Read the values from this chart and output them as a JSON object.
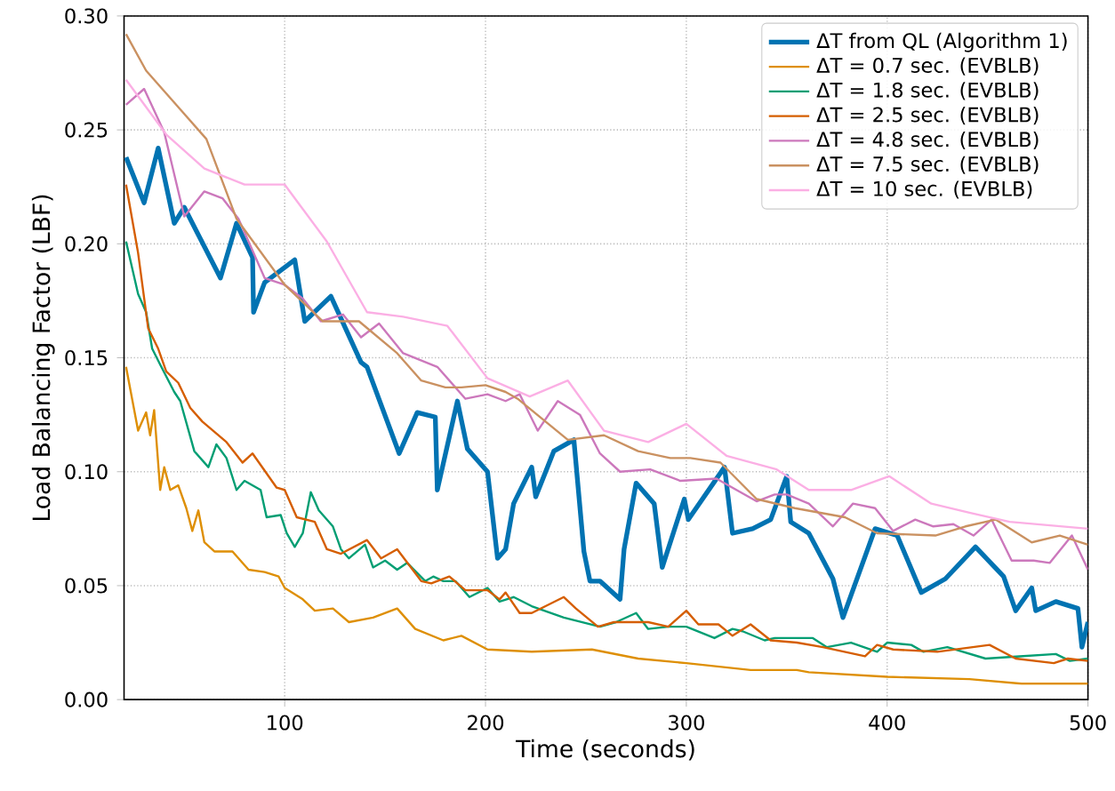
{
  "chart_data": {
    "type": "line",
    "xlabel": "Time (seconds)",
    "ylabel": "Load Balancing Factor (LBF)",
    "xlim": [
      20,
      500
    ],
    "ylim": [
      0,
      0.3
    ],
    "xticks": [
      100,
      200,
      300,
      400,
      500
    ],
    "yticks": [
      {
        "value": 0,
        "label": "0.00"
      },
      {
        "value": 0.05,
        "label": "0.05"
      },
      {
        "value": 0.1,
        "label": "0.10"
      },
      {
        "value": 0.15,
        "label": "0.15"
      },
      {
        "value": 0.2,
        "label": "0.20"
      },
      {
        "value": 0.25,
        "label": "0.25"
      },
      {
        "value": 0.3,
        "label": "0.30"
      }
    ],
    "grid": true,
    "legend": "top right",
    "line_style": "solid",
    "marker": "none",
    "series": [
      {
        "name": "ΔT from QL (Algorithm 1)",
        "color": "#0173b2",
        "x": [
          21,
          30,
          37,
          45,
          50,
          68,
          76,
          84,
          84.5,
          90,
          105,
          110,
          123,
          138,
          141,
          157,
          166,
          175,
          176,
          186,
          191,
          201,
          206,
          210,
          214,
          223,
          225,
          234,
          244,
          249,
          252,
          257,
          267,
          269,
          275,
          284,
          288,
          299,
          301,
          319,
          323,
          333,
          342,
          350,
          352,
          361,
          373,
          378,
          394,
          405,
          417,
          429,
          444,
          458,
          464,
          472,
          474,
          484,
          495,
          497,
          500
        ],
        "values": [
          0.238,
          0.218,
          0.242,
          0.209,
          0.216,
          0.185,
          0.209,
          0.194,
          0.17,
          0.183,
          0.193,
          0.166,
          0.177,
          0.148,
          0.146,
          0.108,
          0.126,
          0.124,
          0.092,
          0.131,
          0.11,
          0.1,
          0.062,
          0.066,
          0.086,
          0.102,
          0.089,
          0.109,
          0.114,
          0.065,
          0.052,
          0.052,
          0.044,
          0.066,
          0.095,
          0.086,
          0.058,
          0.088,
          0.079,
          0.102,
          0.073,
          0.075,
          0.079,
          0.098,
          0.078,
          0.073,
          0.053,
          0.036,
          0.075,
          0.072,
          0.047,
          0.053,
          0.067,
          0.054,
          0.039,
          0.049,
          0.039,
          0.043,
          0.04,
          0.023,
          0.034
        ]
      },
      {
        "name": "ΔT = 0.7 sec. (EVBLB)",
        "color": "#de8f05",
        "x": [
          21,
          27,
          31,
          33,
          35,
          38,
          40,
          43,
          47,
          51,
          54,
          57,
          60,
          65,
          74,
          82,
          90,
          97,
          100,
          109,
          115,
          124,
          132,
          144,
          156,
          165,
          179,
          188,
          201,
          223,
          253,
          276,
          300,
          332,
          355,
          361,
          400,
          441,
          467,
          500
        ],
        "values": [
          0.146,
          0.118,
          0.126,
          0.116,
          0.127,
          0.092,
          0.102,
          0.092,
          0.094,
          0.084,
          0.074,
          0.083,
          0.069,
          0.065,
          0.065,
          0.057,
          0.056,
          0.054,
          0.049,
          0.044,
          0.039,
          0.04,
          0.034,
          0.036,
          0.04,
          0.031,
          0.026,
          0.028,
          0.022,
          0.021,
          0.022,
          0.018,
          0.016,
          0.013,
          0.013,
          0.012,
          0.01,
          0.009,
          0.007,
          0.007
        ]
      },
      {
        "name": "ΔT = 1.8 sec. (EVBLB)",
        "color": "#029e73",
        "x": [
          21,
          27,
          31,
          34,
          38,
          45,
          48,
          55,
          62,
          66,
          71,
          76,
          80,
          88,
          91,
          98,
          101,
          105,
          109,
          113,
          117,
          124,
          128,
          132,
          140,
          144,
          150,
          156,
          161,
          170,
          174,
          179,
          185,
          192,
          201,
          207,
          214,
          223,
          239,
          257,
          265,
          275,
          281,
          291,
          300,
          314,
          323,
          328,
          339,
          344,
          363,
          370,
          382,
          395,
          400,
          412,
          418,
          430,
          449,
          466,
          484,
          491,
          500
        ],
        "values": [
          0.201,
          0.178,
          0.17,
          0.154,
          0.147,
          0.135,
          0.131,
          0.109,
          0.102,
          0.112,
          0.106,
          0.092,
          0.096,
          0.092,
          0.08,
          0.081,
          0.073,
          0.067,
          0.073,
          0.091,
          0.083,
          0.076,
          0.066,
          0.062,
          0.068,
          0.058,
          0.061,
          0.057,
          0.06,
          0.052,
          0.054,
          0.052,
          0.052,
          0.045,
          0.049,
          0.043,
          0.045,
          0.041,
          0.036,
          0.032,
          0.034,
          0.038,
          0.031,
          0.032,
          0.032,
          0.027,
          0.031,
          0.03,
          0.026,
          0.027,
          0.027,
          0.023,
          0.025,
          0.021,
          0.025,
          0.024,
          0.021,
          0.023,
          0.018,
          0.019,
          0.02,
          0.017,
          0.018
        ]
      },
      {
        "name": "ΔT = 2.5 sec. (EVBLB)",
        "color": "#d55e00",
        "x": [
          21,
          27,
          32,
          37,
          41,
          47,
          53,
          59,
          71,
          79,
          84,
          96,
          100,
          106,
          115,
          121,
          128,
          141,
          148,
          156,
          168,
          173,
          182,
          190,
          201,
          207,
          210,
          217,
          223,
          239,
          245,
          256,
          264,
          281,
          291,
          300,
          306,
          316,
          323,
          332,
          342,
          355,
          368,
          389,
          395,
          403,
          425,
          451,
          464,
          483,
          490,
          500
        ],
        "values": [
          0.226,
          0.196,
          0.163,
          0.154,
          0.144,
          0.139,
          0.128,
          0.122,
          0.113,
          0.104,
          0.108,
          0.093,
          0.092,
          0.08,
          0.078,
          0.066,
          0.064,
          0.07,
          0.062,
          0.066,
          0.052,
          0.051,
          0.054,
          0.048,
          0.048,
          0.044,
          0.047,
          0.038,
          0.038,
          0.045,
          0.04,
          0.032,
          0.034,
          0.034,
          0.032,
          0.039,
          0.033,
          0.033,
          0.028,
          0.033,
          0.026,
          0.025,
          0.023,
          0.019,
          0.024,
          0.022,
          0.021,
          0.024,
          0.018,
          0.016,
          0.018,
          0.017
        ]
      },
      {
        "name": "ΔT = 4.8 sec. (EVBLB)",
        "color": "#cc78bc",
        "x": [
          21,
          30,
          40,
          50,
          60,
          69,
          77,
          90,
          100,
          109,
          118,
          129,
          138,
          147,
          159,
          176,
          190,
          201,
          210,
          217,
          226,
          236,
          247,
          257,
          267,
          282,
          297,
          315,
          323,
          335,
          344,
          350,
          361,
          373,
          383,
          394,
          403,
          414,
          423,
          433,
          443,
          452,
          462,
          473,
          481,
          492,
          500
        ],
        "values": [
          0.261,
          0.268,
          0.249,
          0.212,
          0.223,
          0.22,
          0.211,
          0.185,
          0.182,
          0.176,
          0.166,
          0.169,
          0.159,
          0.165,
          0.152,
          0.146,
          0.132,
          0.134,
          0.131,
          0.134,
          0.118,
          0.131,
          0.125,
          0.108,
          0.1,
          0.101,
          0.096,
          0.097,
          0.093,
          0.087,
          0.09,
          0.09,
          0.086,
          0.076,
          0.086,
          0.084,
          0.074,
          0.079,
          0.076,
          0.077,
          0.072,
          0.079,
          0.061,
          0.061,
          0.06,
          0.072,
          0.057
        ]
      },
      {
        "name": "ΔT = 7.5 sec. (EVBLB)",
        "color": "#ca9161",
        "x": [
          21,
          31,
          47,
          61,
          76,
          100,
          119,
          137,
          156,
          168,
          180,
          188,
          200,
          210,
          216,
          241,
          259,
          276,
          292,
          302,
          317,
          335,
          354,
          379,
          395,
          424,
          439,
          454,
          472,
          486,
          500
        ],
        "values": [
          0.292,
          0.276,
          0.26,
          0.246,
          0.211,
          0.182,
          0.166,
          0.166,
          0.152,
          0.14,
          0.137,
          0.137,
          0.138,
          0.135,
          0.132,
          0.114,
          0.116,
          0.109,
          0.106,
          0.106,
          0.104,
          0.088,
          0.084,
          0.08,
          0.073,
          0.072,
          0.076,
          0.079,
          0.069,
          0.072,
          0.068
        ]
      },
      {
        "name": "ΔT = 10 sec. (EVBLB)",
        "color": "#fbafe4",
        "x": [
          21,
          41,
          60,
          80,
          100,
          121,
          141,
          159,
          181,
          201,
          222,
          241,
          259,
          281,
          300,
          320,
          345,
          361,
          382,
          401,
          422,
          441,
          461,
          500
        ],
        "values": [
          0.272,
          0.248,
          0.233,
          0.226,
          0.226,
          0.201,
          0.17,
          0.168,
          0.164,
          0.141,
          0.133,
          0.14,
          0.118,
          0.113,
          0.121,
          0.107,
          0.101,
          0.092,
          0.092,
          0.098,
          0.086,
          0.082,
          0.078,
          0.075
        ]
      }
    ]
  }
}
